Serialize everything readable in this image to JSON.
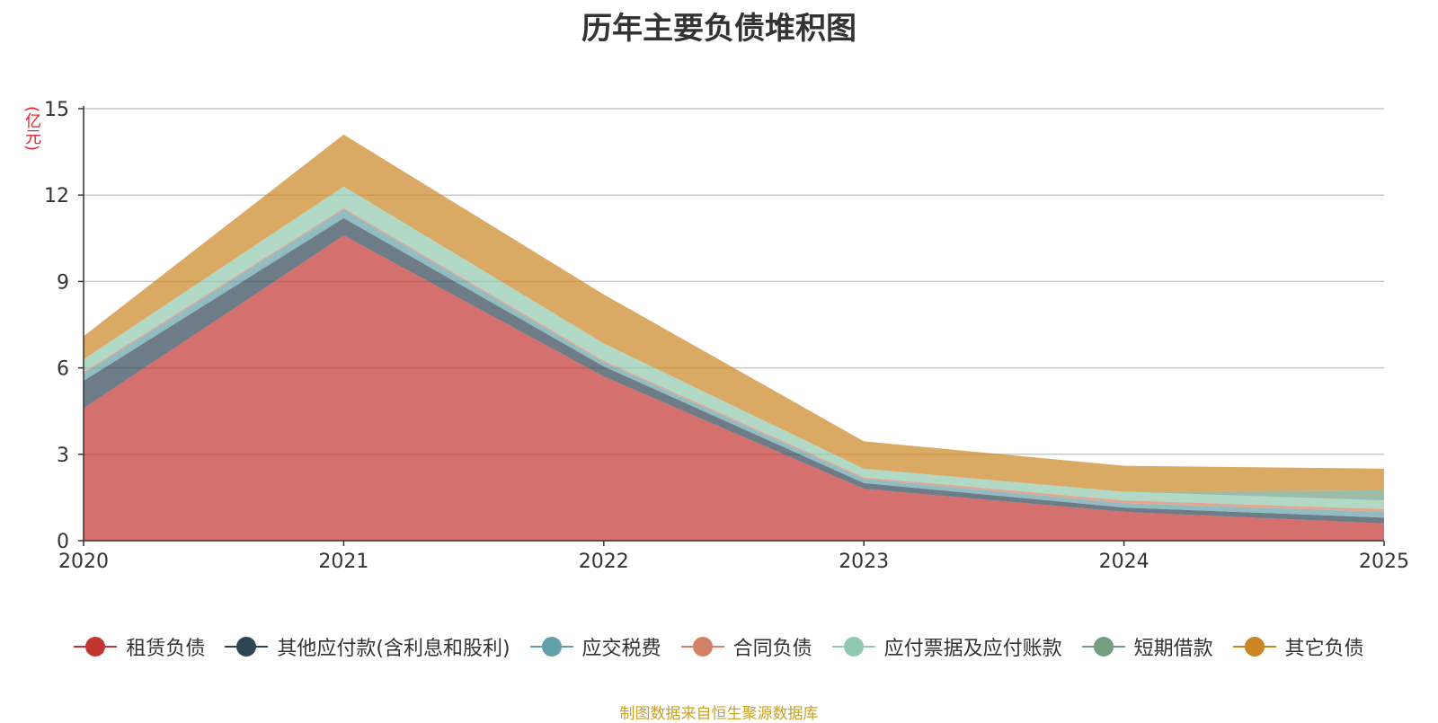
{
  "chart_data": {
    "type": "area",
    "title": "历年主要负债堆积图",
    "ylabel": "(亿元)",
    "x": [
      "2020",
      "2021",
      "2022",
      "2023",
      "2024",
      "2025"
    ],
    "ylim": [
      0,
      15
    ],
    "yticks": [
      "0",
      "3",
      "6",
      "9",
      "12",
      "15"
    ],
    "stacked": true,
    "grid": true,
    "legend_position": "bottom",
    "series": [
      {
        "name": "租赁负债",
        "color": "#c23531",
        "values": [
          4.6,
          10.6,
          5.7,
          1.8,
          1.0,
          0.6
        ]
      },
      {
        "name": "其他应付款(含利息和股利)",
        "color": "#2f4554",
        "values": [
          0.95,
          0.6,
          0.35,
          0.2,
          0.15,
          0.2
        ]
      },
      {
        "name": "应交税费",
        "color": "#61a0a8",
        "values": [
          0.25,
          0.3,
          0.15,
          0.15,
          0.15,
          0.2
        ]
      },
      {
        "name": "合同负债",
        "color": "#d48265",
        "values": [
          0.05,
          0.05,
          0.05,
          0.05,
          0.1,
          0.1
        ]
      },
      {
        "name": "应付票据及应付账款",
        "color": "#91c7ae",
        "values": [
          0.45,
          0.75,
          0.6,
          0.3,
          0.3,
          0.3
        ]
      },
      {
        "name": "短期借款",
        "color": "#749f83",
        "values": [
          0,
          0,
          0,
          0,
          0,
          0.35
        ]
      },
      {
        "name": "其它负债",
        "color": "#ca8622",
        "values": [
          0.8,
          1.8,
          1.7,
          0.95,
          0.9,
          0.75
        ]
      }
    ]
  },
  "source_note": "制图数据来自恒生聚源数据库"
}
